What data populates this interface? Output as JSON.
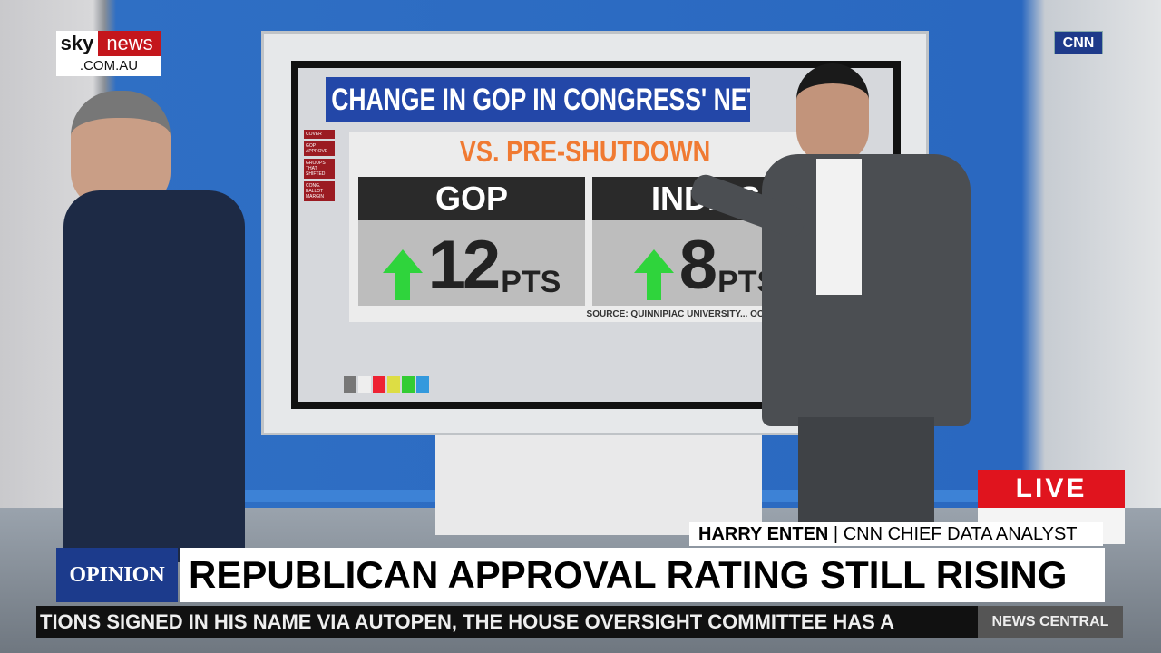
{
  "broadcast": {
    "sky_logo": {
      "part1": "sky",
      "part2": "news",
      "domain": ".COM.AU"
    },
    "cnn_logo": "CNN",
    "live_label": "LIVE",
    "lower_third": {
      "name": "HARRY ENTEN",
      "separator": "|",
      "title": "CNN CHIEF DATA ANALYST"
    },
    "opinion_tag": "OPINION",
    "headline": "REPUBLICAN APPROVAL RATING STILL RISING",
    "ticker_text": "TIONS SIGNED IN HIS NAME VIA AUTOPEN, THE HOUSE OVERSIGHT COMMITTEE HAS A",
    "ticker_brand": "NEWS CENTRAL"
  },
  "board": {
    "title": "CHANGE IN GOP IN CONGRESS' NET APPR",
    "nav": [
      "COVER",
      "GOP APPROVE",
      "GROUPS THAT SHIFTED",
      "CONG. BALLOT MARGIN"
    ],
    "subtitle": "VS. PRE-SHUTDOWN",
    "cards": [
      {
        "label": "GOP",
        "value": "12",
        "unit": "PTS",
        "direction": "up-arrow"
      },
      {
        "label": "INDIES",
        "value": "8",
        "unit": "PTS",
        "direction": "up-arrow"
      }
    ],
    "source": "SOURCE: QUINNIPIAC UNIVERSITY... OCTOBER AND",
    "colors": {
      "title_bg": "#2347a8",
      "subtitle": "#f07a32",
      "arrow": "#2fd43c",
      "live": "#e0141e",
      "opinion_bg": "#1c3b8c"
    }
  }
}
